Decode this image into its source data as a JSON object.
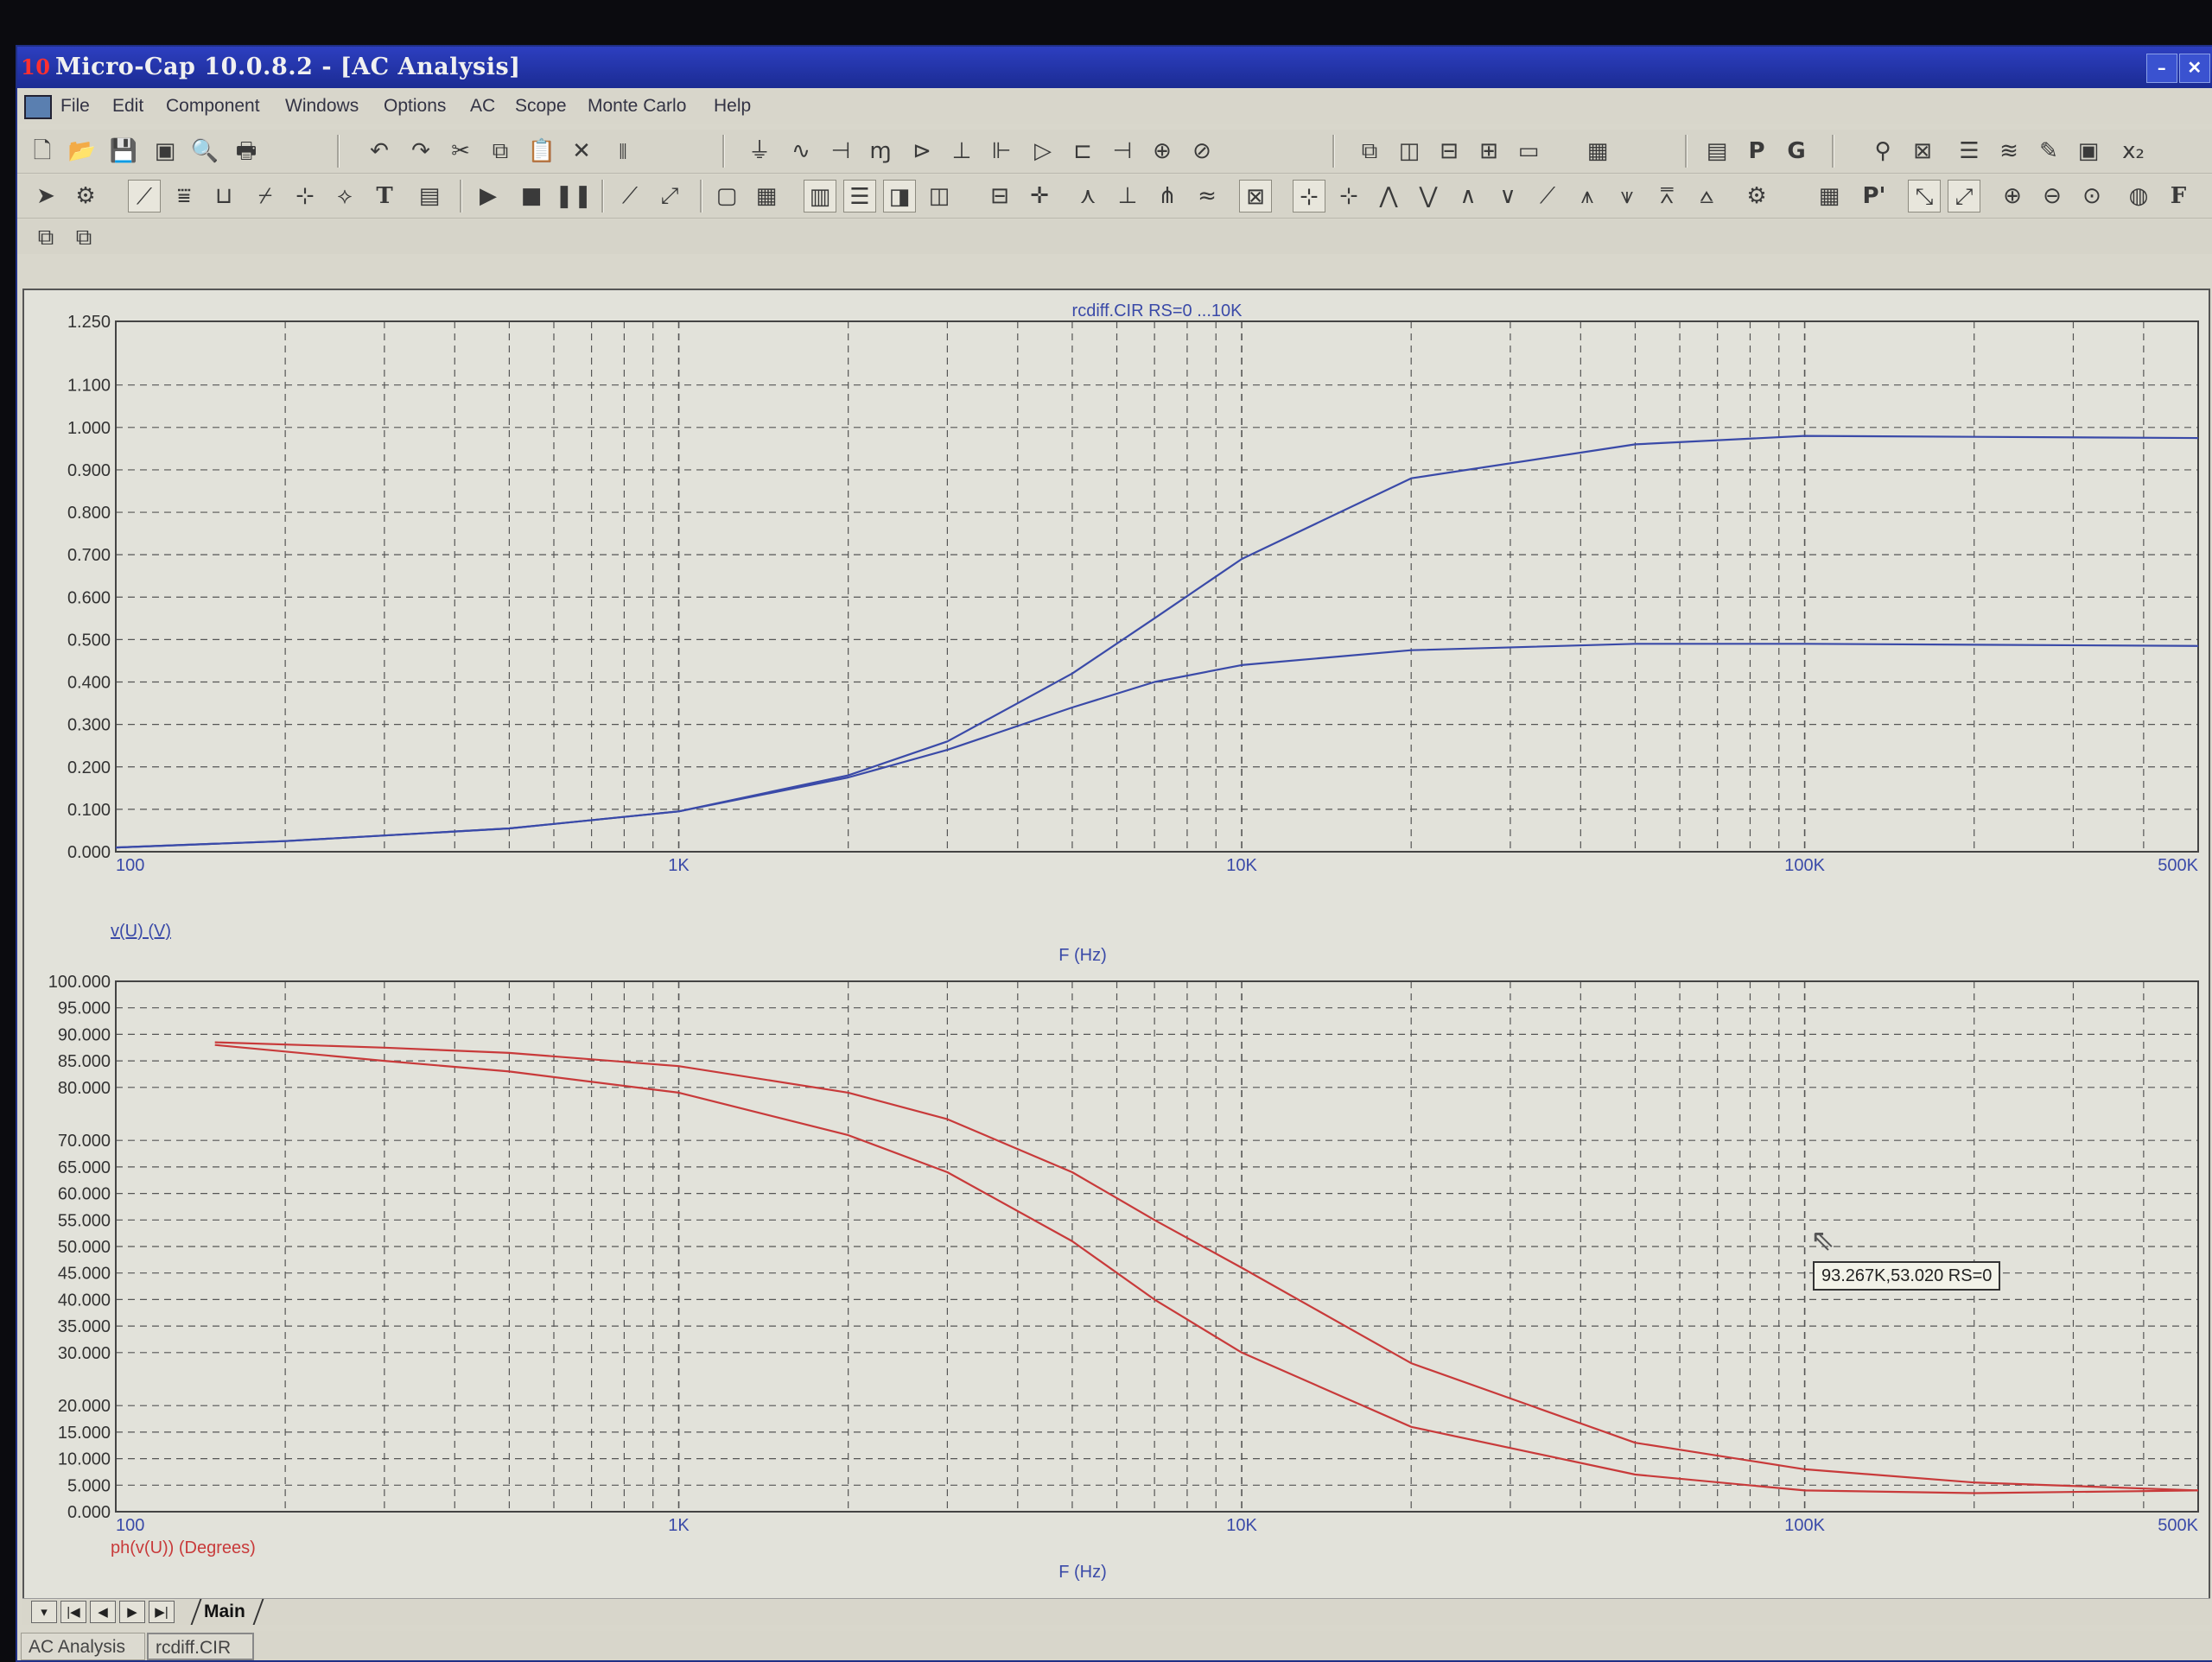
{
  "window": {
    "title": "Micro-Cap 10.0.8.2 - [AC Analysis]",
    "app_icon": "10"
  },
  "menubar": {
    "items": [
      "File",
      "Edit",
      "Component",
      "Windows",
      "Options",
      "AC",
      "Scope",
      "Monte Carlo",
      "Help"
    ]
  },
  "toolbar_row1": {
    "icons": [
      "new-icon",
      "open-icon",
      "save-icon",
      "save-all-icon",
      "print-preview-icon",
      "print-icon",
      "undo-icon",
      "redo-icon",
      "cut-icon",
      "copy-icon",
      "paste-icon",
      "delete-icon",
      "select-all-icon",
      "ground-icon",
      "resistor-icon",
      "capacitor-icon",
      "inductor-icon",
      "diode-icon",
      "battery-icon",
      "transistor-icon",
      "opamp-icon",
      "switch-icon",
      "capacitor2-icon",
      "voltage-source-icon",
      "current-source-icon",
      "cascade-icon",
      "tile-vertical-icon",
      "tile-horizontal-icon",
      "window-split-icon",
      "window-icon",
      "calculator-icon",
      "window2-icon"
    ],
    "text_buttons": [
      "P",
      "G"
    ]
  },
  "toolbar_row2": {
    "icons": [
      "select-arrow-icon",
      "component-icon",
      "wire-icon",
      "bus-icon",
      "text-icon",
      "flag-icon",
      "pin-icon",
      "node-icon",
      "run-icon",
      "stop-icon",
      "pause-icon",
      "line-icon",
      "diagonal-icon",
      "grid-icon",
      "zoom-in-icon",
      "zoom-out-icon"
    ],
    "text_buttons": [
      "T",
      "P'",
      "F"
    ]
  },
  "top_plot": {
    "title": "rcdiff.CIR RS=0 ...10K",
    "y_ticks": [
      "1.250",
      "1.100",
      "1.000",
      "0.900",
      "0.800",
      "0.700",
      "0.600",
      "0.500",
      "0.400",
      "0.300",
      "0.200",
      "0.100",
      "0.000"
    ],
    "x_ticks": [
      "100",
      "1K",
      "10K",
      "100K",
      "500K"
    ],
    "trace_label": "v(U) (V)",
    "xlabel": "F (Hz)"
  },
  "bottom_plot": {
    "y_ticks": [
      "100.000",
      "95.000",
      "90.000",
      "85.000",
      "80.000",
      "70.000",
      "65.000",
      "60.000",
      "55.000",
      "50.000",
      "45.000",
      "40.000",
      "35.000",
      "30.000",
      "20.000",
      "15.000",
      "10.000",
      "5.000",
      "0.000"
    ],
    "x_ticks": [
      "100",
      "1K",
      "10K",
      "100K",
      "500K"
    ],
    "trace_label": "ph(v(U)) (Degrees)",
    "xlabel": "F (Hz)"
  },
  "tooltip": "93.267K,53.020 RS=0",
  "bottom_nav": {
    "tab": "Main"
  },
  "statusbar": {
    "cells": [
      "AC Analysis",
      "rcdiff.CIR"
    ]
  },
  "chart_data": [
    {
      "type": "line",
      "title": "rcdiff.CIR RS=0 ...10K",
      "xlabel": "F (Hz)",
      "ylabel": "v(U) (V)",
      "xscale": "log",
      "xlim": [
        100,
        500000
      ],
      "ylim": [
        0,
        1.25
      ],
      "grid": true,
      "series": [
        {
          "color": "#3a4aa8",
          "x": [
            100,
            200,
            500,
            1000,
            2000,
            3000,
            5000,
            7000,
            10000,
            20000,
            50000,
            100000,
            500000
          ],
          "y": [
            0.01,
            0.025,
            0.055,
            0.095,
            0.18,
            0.26,
            0.42,
            0.55,
            0.69,
            0.88,
            0.96,
            0.98,
            0.975
          ]
        },
        {
          "color": "#3a4aa8",
          "x": [
            100,
            200,
            500,
            1000,
            2000,
            3000,
            5000,
            7000,
            10000,
            20000,
            50000,
            100000,
            500000
          ],
          "y": [
            0.01,
            0.025,
            0.055,
            0.095,
            0.175,
            0.24,
            0.34,
            0.4,
            0.44,
            0.475,
            0.49,
            0.49,
            0.485
          ]
        }
      ]
    },
    {
      "type": "line",
      "xlabel": "F (Hz)",
      "ylabel": "ph(v(U)) (Degrees)",
      "xscale": "log",
      "xlim": [
        100,
        500000
      ],
      "ylim": [
        0,
        100
      ],
      "grid": true,
      "series": [
        {
          "color": "#c83a3a",
          "x": [
            150,
            300,
            500,
            1000,
            2000,
            3000,
            5000,
            7000,
            10000,
            20000,
            50000,
            100000,
            200000,
            500000
          ],
          "y": [
            88.5,
            87.5,
            86.5,
            84,
            79,
            74,
            64,
            55,
            46,
            28,
            13,
            8,
            5.5,
            4
          ]
        },
        {
          "color": "#c83a3a",
          "x": [
            150,
            300,
            500,
            1000,
            2000,
            3000,
            5000,
            7000,
            10000,
            20000,
            50000,
            100000,
            200000,
            500000
          ],
          "y": [
            88,
            85,
            83,
            79,
            71,
            64,
            51,
            40,
            30,
            16,
            7,
            4,
            3.5,
            4
          ]
        }
      ]
    }
  ]
}
